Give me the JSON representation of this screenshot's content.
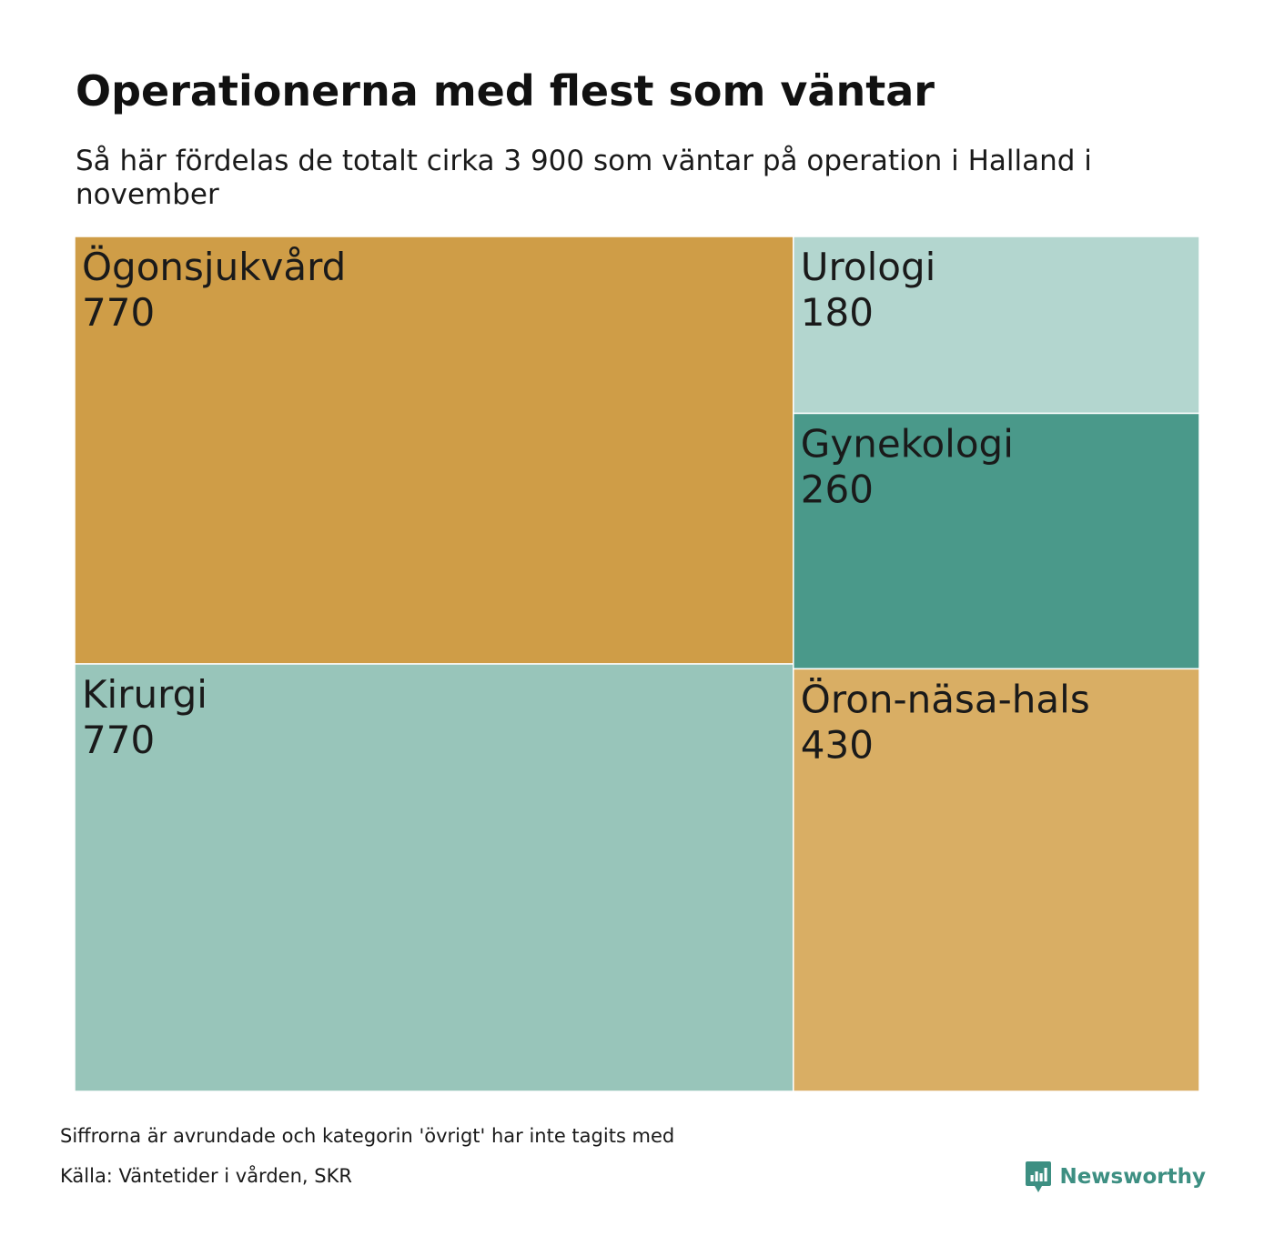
{
  "header": {
    "title": "Operationerna med flest som väntar",
    "subtitle": "Så här fördelas de totalt cirka 3 900 som väntar på operation i Halland i november"
  },
  "chart_data": {
    "type": "treemap",
    "title": "Operationerna med flest som väntar",
    "subtitle": "Så här fördelas de totalt cirka 3 900 som väntar på operation i Halland i november",
    "categories": [
      "Ögonsjukvård",
      "Kirurgi",
      "Urologi",
      "Gynekologi",
      "Öron-näsa-hals"
    ],
    "values": [
      770,
      770,
      180,
      260,
      430
    ],
    "colors": [
      "#cf9d47",
      "#98c5ba",
      "#b3d6cf",
      "#4a998a",
      "#d9ae64"
    ]
  },
  "footer": {
    "note": "Siffrorna är avrundade och kategorin 'övrigt' har inte tagits med",
    "source": "Källa: Väntetider i vården, SKR",
    "brand": "Newsworthy",
    "brand_color": "#3d8f82"
  }
}
